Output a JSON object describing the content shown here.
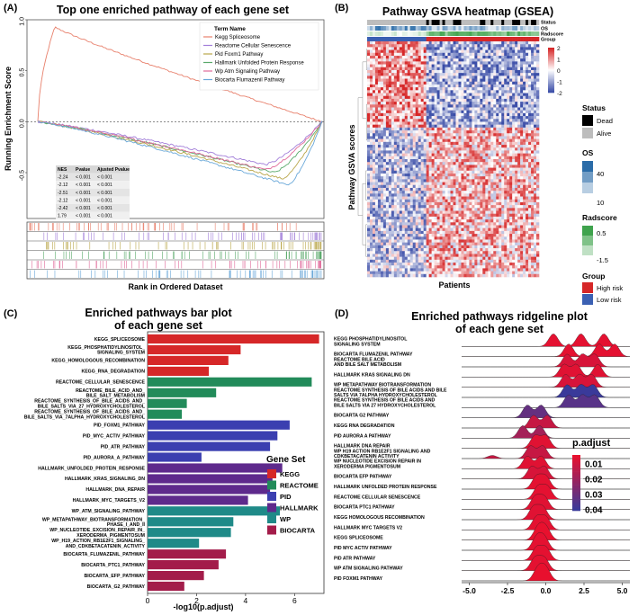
{
  "panels": {
    "a": {
      "letter": "(A)",
      "title": "Top one enriched pathway of each gene set"
    },
    "b": {
      "letter": "(B)",
      "title": "Pathway GSVA heatmap (GSEA)"
    },
    "c": {
      "letter": "(C)",
      "title_line1": "Enriched pathways bar plot",
      "title_line2": "of each gene set"
    },
    "d": {
      "letter": "(D)",
      "title_line1": "Enriched pathways ridgeline plot",
      "title_line2": "of each gene set"
    }
  },
  "chart_data": [
    {
      "id": "gsea",
      "type": "line",
      "ylabel": "Running Enrichment Score",
      "xlabel": "Rank in Ordered Dataset",
      "yticks": [
        "1.0",
        "0.5",
        "0.0",
        "-0.5"
      ],
      "ylim": [
        -0.95,
        1.0
      ],
      "legend_title": "Term Name",
      "series": [
        {
          "name": "Kegg Spliceosome",
          "color": "#e8806c",
          "min": 0.0,
          "peak": 0.93,
          "peak_at": 0.06,
          "direction": "up"
        },
        {
          "name": "Reactome Cellular Senescence",
          "color": "#a27ed9",
          "min": -0.42,
          "peak_at": 0.8,
          "direction": "down"
        },
        {
          "name": "Pid Foxm1 Pathway",
          "color": "#b9a64a",
          "min": -0.56,
          "peak_at": 0.86,
          "direction": "down"
        },
        {
          "name": "Hallmark Unfolded Protein Response",
          "color": "#59a96a",
          "min": -0.5,
          "peak_at": 0.83,
          "direction": "down"
        },
        {
          "name": "Wp Atm Signaling Pathway",
          "color": "#e06a9a",
          "min": -0.47,
          "peak_at": 0.8,
          "direction": "down"
        },
        {
          "name": "Biocarta Flumazenil Pathway",
          "color": "#6aa8d9",
          "min": -0.62,
          "peak_at": 0.88,
          "direction": "down"
        }
      ],
      "table": {
        "headers": [
          "NES",
          "Pvalue",
          "Ajusted Pvalue"
        ],
        "rows": [
          [
            "-2.24",
            "< 0.001",
            "< 0.001"
          ],
          [
            "-2.12",
            "< 0.001",
            "< 0.001"
          ],
          [
            "-2.51",
            "< 0.001",
            "< 0.001"
          ],
          [
            "-2.12",
            "< 0.001",
            "< 0.001"
          ],
          [
            "-2.42",
            "< 0.001",
            "< 0.001"
          ],
          [
            "1.79",
            "< 0.001",
            "< 0.001"
          ]
        ]
      }
    },
    {
      "id": "heatmap",
      "type": "heatmap",
      "ylabel": "Pathway GSVA scores",
      "xlabel": "Patients",
      "annotation_rows": [
        "Status",
        "OS",
        "Radscore",
        "Group"
      ],
      "colorbar_ticks": [
        "2",
        "1",
        "0",
        "-1",
        "-2"
      ],
      "colorbar_range": [
        -2,
        2
      ],
      "colors": {
        "low": "#3b4ea8",
        "mid": "#ffffff",
        "high": "#d62728"
      },
      "legends": [
        {
          "title": "Status",
          "items": [
            {
              "label": "Dead",
              "color": "#000000"
            },
            {
              "label": "Alive",
              "color": "#bdbdbd"
            }
          ]
        },
        {
          "title": "OS",
          "ticks": [
            "40",
            "10"
          ],
          "color_high": "#2b6ca8",
          "color_low": "#ffffff"
        },
        {
          "title": "Radscore",
          "ticks": [
            "0.5",
            "-1.5"
          ],
          "color_high": "#3fa34d",
          "color_low": "#ffffff"
        },
        {
          "title": "Group",
          "items": [
            {
              "label": "High risk",
              "color": "#d62728"
            },
            {
              "label": "Low risk",
              "color": "#3b60b3"
            }
          ]
        }
      ],
      "group_split": 0.34
    },
    {
      "id": "bar",
      "type": "bar",
      "orientation": "horizontal",
      "xlabel": "-log10(p.adjust)",
      "xticks": [
        0,
        2,
        4,
        6
      ],
      "xlim": [
        0,
        7.2
      ],
      "legend_title": "Gene Set",
      "groups": [
        {
          "name": "KEGG",
          "color": "#d62728"
        },
        {
          "name": "REACTOME",
          "color": "#228b5a"
        },
        {
          "name": "PID",
          "color": "#3b3fb0"
        },
        {
          "name": "HALLMARK",
          "color": "#5e2a8c"
        },
        {
          "name": "WP",
          "color": "#1f8a88"
        },
        {
          "name": "BIOCARTA",
          "color": "#a31c4a"
        }
      ],
      "bars": [
        {
          "label": [
            "KEGG_SPLICEOSOME"
          ],
          "value": 7.0,
          "group": "KEGG"
        },
        {
          "label": [
            "KEGG_PHOSPHATIDYLINOSITOL_",
            "SIGNALING_SYSTEM"
          ],
          "value": 3.8,
          "group": "KEGG"
        },
        {
          "label": [
            "KEGG_HOMOLOGOUS_RECOMBINATION"
          ],
          "value": 3.3,
          "group": "KEGG"
        },
        {
          "label": [
            "KEGG_RNA_DEGRADATION"
          ],
          "value": 2.5,
          "group": "KEGG"
        },
        {
          "label": [
            "REACTOME_CELLULAR_SENESCENCE"
          ],
          "value": 6.7,
          "group": "REACTOME"
        },
        {
          "label": [
            "REACTOME_BILE_ACID_AND_",
            "BILE_SALT_METABOLISM"
          ],
          "value": 2.8,
          "group": "REACTOME"
        },
        {
          "label": [
            "REACTOME_SYNTHESIS_OF_BILE_ACIDS_AND_",
            "BILE_SALTS_VIA_27_HYDROXYCHOLESTEROL"
          ],
          "value": 1.6,
          "group": "REACTOME"
        },
        {
          "label": [
            "REACTOME_SYNTHESIS_OF_BILE_ACIDS_AND_",
            "BILE_SALTS_VIA_7ALPHA_HYDROXYCHOLESTEROL"
          ],
          "value": 1.4,
          "group": "REACTOME"
        },
        {
          "label": [
            "PID_FOXM1_PATHWAY"
          ],
          "value": 5.8,
          "group": "PID"
        },
        {
          "label": [
            "PID_MYC_ACTIV_PATHWAY"
          ],
          "value": 5.3,
          "group": "PID"
        },
        {
          "label": [
            "PID_ATR_PATHWAY"
          ],
          "value": 5.0,
          "group": "PID"
        },
        {
          "label": [
            "PID_AURORA_A_PATHWAY"
          ],
          "value": 2.2,
          "group": "PID"
        },
        {
          "label": [
            "HALLMARK_UNFOLDED_PROTEIN_RESPONSE"
          ],
          "value": 5.5,
          "group": "HALLMARK"
        },
        {
          "label": [
            "HALLMARK_KRAS_SIGNALING_DN"
          ],
          "value": 5.1,
          "group": "HALLMARK"
        },
        {
          "label": [
            "HALLMARK_DNA_REPAIR"
          ],
          "value": 5.0,
          "group": "HALLMARK"
        },
        {
          "label": [
            "HALLMARK_MYC_TARGETS_V2"
          ],
          "value": 4.1,
          "group": "HALLMARK"
        },
        {
          "label": [
            "WP_ATM_SIGNALING_PATHWAY"
          ],
          "value": 5.4,
          "group": "WP"
        },
        {
          "label": [
            "WP_METAPATHWAY_BIOTRANSFORMATION_",
            "PHASE_I_AND_II"
          ],
          "value": 3.5,
          "group": "WP"
        },
        {
          "label": [
            "WP_NUCLEOTIDE_EXCISION_REPAIR_IN_",
            "XERODERMA_PIGMENTOSUM"
          ],
          "value": 3.4,
          "group": "WP"
        },
        {
          "label": [
            "WP_H19_ACTION_RB1E2F1_SIGNALING_",
            "AND_CDKBETACATENIN_ACTIVITY"
          ],
          "value": 2.1,
          "group": "WP"
        },
        {
          "label": [
            "BIOCARTA_FLUMAZENIL_PATHWAY"
          ],
          "value": 3.2,
          "group": "BIOCARTA"
        },
        {
          "label": [
            "BIOCARTA_PTC1_PATHWAY"
          ],
          "value": 2.9,
          "group": "BIOCARTA"
        },
        {
          "label": [
            "BIOCARTA_EFP_PATHWAY"
          ],
          "value": 2.3,
          "group": "BIOCARTA"
        },
        {
          "label": [
            "BIOCARTA_G2_PATHWAY"
          ],
          "value": 1.5,
          "group": "BIOCARTA"
        }
      ]
    },
    {
      "id": "ridge",
      "type": "area",
      "subtype": "ridgeline",
      "xticks": [
        "-5.0",
        "-2.5",
        "0.0",
        "2.5",
        "5.0"
      ],
      "xlim": [
        -5.5,
        5.5
      ],
      "legend_title": "p.adjust",
      "legend_ticks": [
        "0.01",
        "0.02",
        "0.03",
        "0.04"
      ],
      "color_low_p": "#e8102e",
      "color_high_p": "#3a3a9a",
      "rows": [
        {
          "label": [
            "KEGG PHOSPHATIDYLINOSITOL",
            "SIGNALING SYSTEM"
          ],
          "modes": [
            0.5,
            2.3,
            3.8
          ],
          "padj": 0.005
        },
        {
          "label": [
            "BIOCARTA FLUMAZENIL PATHWAY"
          ],
          "modes": [
            1.5,
            3.5,
            4.5
          ],
          "padj": 0.005
        },
        {
          "label": [
            "REACTOME BILE ACID",
            "AND BILE SALT METABOLISM"
          ],
          "modes": [
            1.4,
            2.4,
            3.2
          ],
          "padj": 0.008
        },
        {
          "label": [
            "HALLMARK KRAS SIGNALING DN"
          ],
          "modes": [
            1.2,
            2.0,
            3.4
          ],
          "padj": 0.006
        },
        {
          "label": [
            "WP METAPATHWAY BIOTRANSFORMATION"
          ],
          "modes": [
            1.3,
            2.2,
            3.0
          ],
          "padj": 0.008
        },
        {
          "label": [
            "REACTOME SYNTHESIS OF BILE ACIDS AND BILE",
            "SALTS VIA 7ALPHA HYDROXYCHOLESTEROL"
          ],
          "modes": [
            1.4,
            2.3,
            3.1
          ],
          "padj": 0.045
        },
        {
          "label": [
            "REACTOME SYNTHESIS OF BILE ACIDS AND",
            "BILE SALTS VIA 27 HYDROXYCHOLESTEROL"
          ],
          "modes": [
            1.5,
            2.4,
            3.2
          ],
          "padj": 0.038
        },
        {
          "label": [
            "BIOCARTA G2 PATHWAY"
          ],
          "modes": [
            -1.2,
            -0.3
          ],
          "padj": 0.035
        },
        {
          "label": [
            "KEGG RNA DEGRADATION"
          ],
          "modes": [
            -0.8,
            0.1
          ],
          "padj": 0.012
        },
        {
          "label": [
            "PID AURORA A PATHWAY"
          ],
          "modes": [
            -1.5,
            -0.4
          ],
          "padj": 0.02
        },
        {
          "label": [
            "HALLMARK DNA REPAIR"
          ],
          "modes": [
            -0.7,
            0.0
          ],
          "padj": 0.006
        },
        {
          "label": [
            "WP H19 ACTION RB1E2F1 SIGNALING AND",
            "CDKBETACATENIN ACTIVITY"
          ],
          "modes": [
            -3.5,
            -1.0,
            -0.2
          ],
          "padj": 0.012
        },
        {
          "label": [
            "WP NUCLEOTIDE EXCISION REPAIR IN",
            "XERODERMA PIGMENTOSUM"
          ],
          "modes": [
            -1.2,
            -0.3
          ],
          "padj": 0.006
        },
        {
          "label": [
            "BIOCARTA EFP PATHWAY"
          ],
          "modes": [
            -0.9,
            -0.1
          ],
          "padj": 0.008
        },
        {
          "label": [
            "HALLMARK UNFOLDED PROTEIN RESPONSE"
          ],
          "modes": [
            -0.6,
            0.0
          ],
          "padj": 0.005
        },
        {
          "label": [
            "REACTOME CELLULAR SENESCENCE"
          ],
          "modes": [
            -0.5,
            0.1
          ],
          "padj": 0.005
        },
        {
          "label": [
            "BIOCARTA PTC1 PATHWAY"
          ],
          "modes": [
            -0.7,
            -0.1
          ],
          "padj": 0.006
        },
        {
          "label": [
            "KEGG HOMOLOGOUS RECOMBINATION"
          ],
          "modes": [
            -0.8,
            -0.2
          ],
          "padj": 0.006
        },
        {
          "label": [
            "HALLMARK MYC TARGETS V2"
          ],
          "modes": [
            -0.6,
            0.0
          ],
          "padj": 0.005
        },
        {
          "label": [
            "KEGG SPLICEOSOME"
          ],
          "modes": [
            -0.5,
            0.0
          ],
          "padj": 0.004
        },
        {
          "label": [
            "PID MYC ACTIV PATHWAY"
          ],
          "modes": [
            -0.6,
            -0.1
          ],
          "padj": 0.005
        },
        {
          "label": [
            "PID ATR PATHWAY"
          ],
          "modes": [
            -0.6,
            0.0
          ],
          "padj": 0.005
        },
        {
          "label": [
            "WP ATM SIGNALING PATHWAY"
          ],
          "modes": [
            -0.7,
            -0.1
          ],
          "padj": 0.005
        },
        {
          "label": [
            "PID FOXM1 PATHWAY"
          ],
          "modes": [
            -0.5,
            0.0
          ],
          "padj": 0.004
        }
      ]
    }
  ]
}
